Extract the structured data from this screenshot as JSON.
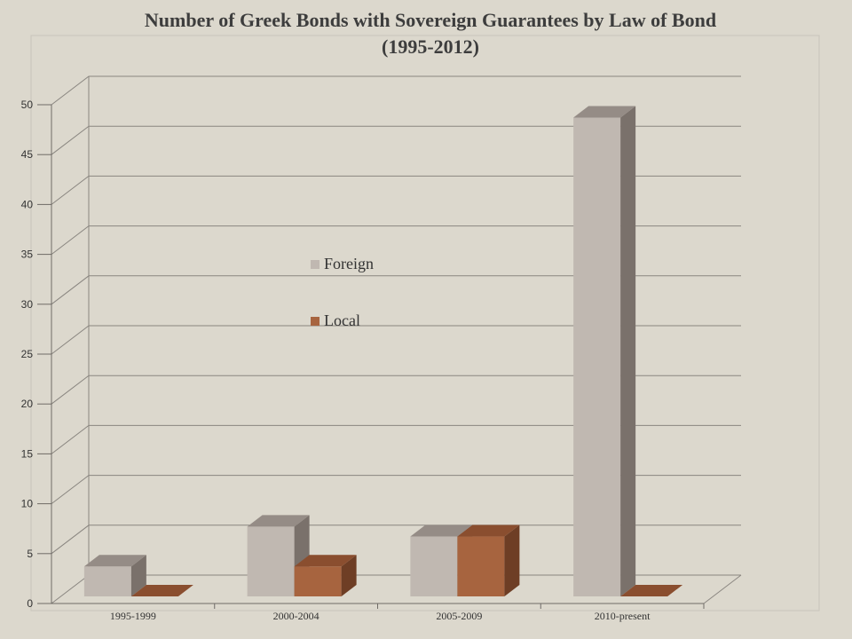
{
  "title": {
    "line1": "Number of Greek Bonds with Sovereign Guarantees by Law of Bond",
    "line2": "(1995-2012)"
  },
  "chart_data": {
    "type": "bar",
    "style": "3d-clustered",
    "categories": [
      "1995-1999",
      "2000-2004",
      "2005-2009",
      "2010-present"
    ],
    "series": [
      {
        "name": "Foreign",
        "values": [
          3,
          7,
          6,
          48
        ],
        "color": "#c0b8b1",
        "side": "#7a716b",
        "top": "#958c86"
      },
      {
        "name": "Local",
        "values": [
          0,
          3,
          6,
          0
        ],
        "color": "#a7643f",
        "side": "#6e3e25",
        "top": "#8a4e2f"
      }
    ],
    "ylim": [
      0,
      50
    ],
    "yticks": [
      0,
      5,
      10,
      15,
      20,
      25,
      30,
      35,
      40,
      45,
      50
    ],
    "grid": true,
    "legend": "center"
  }
}
